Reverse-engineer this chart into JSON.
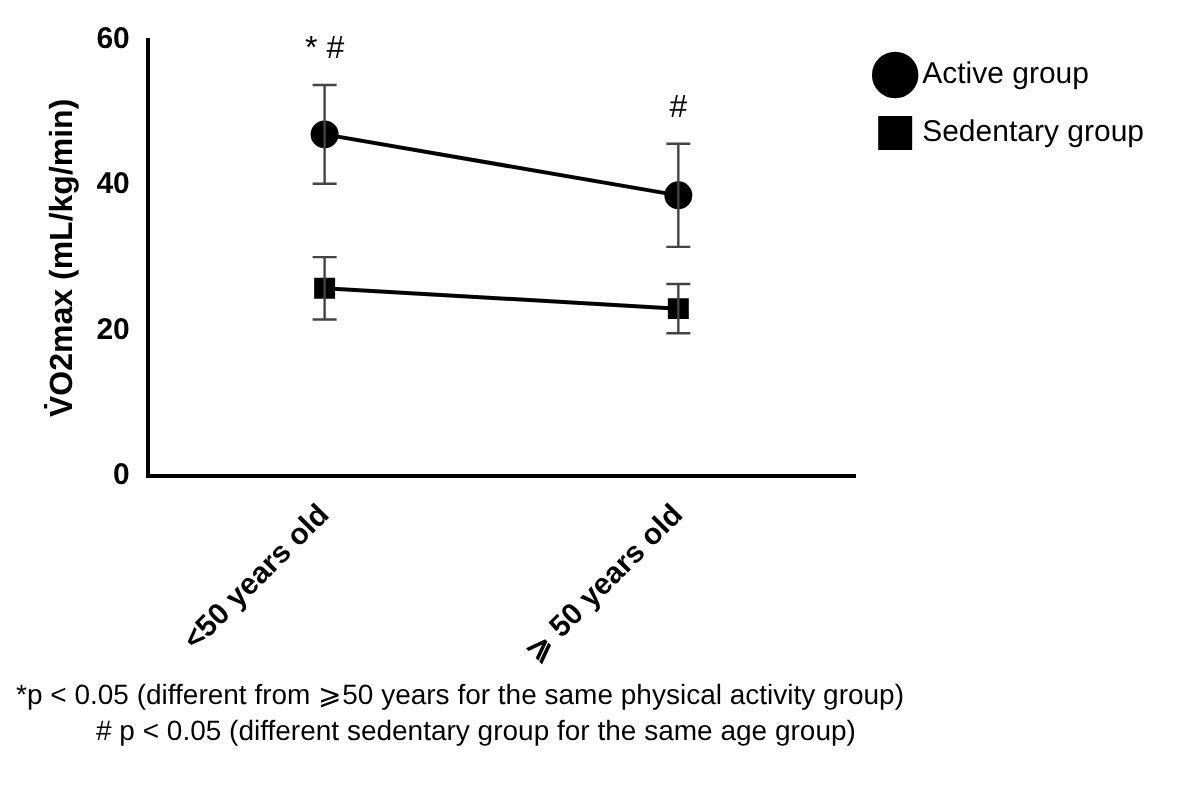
{
  "chart_data": {
    "type": "line",
    "ylabel": "V̇O2max (mL/kg/min)",
    "categories": [
      "<50 years old",
      "⩾ 50 years old"
    ],
    "series": [
      {
        "name": "Active group",
        "color": "#000000",
        "marker": "circle",
        "values": [
          47,
          38.6
        ],
        "errors": [
          6.8,
          7.1
        ]
      },
      {
        "name": "Sedentary group",
        "color": "#000000",
        "marker": "square",
        "values": [
          25.8,
          23
        ],
        "errors": [
          4.3,
          3.4
        ]
      }
    ],
    "ylim": [
      0,
      60
    ],
    "yticks": [
      0,
      20,
      40,
      60
    ],
    "grid": false,
    "legend": "top right",
    "line_style": "solid",
    "annotations": [
      "* #",
      "#",
      "*p < 0.05 (different from ⩾50 years for the same physical activity group)",
      "# p < 0.05 (different sedentary group for the same age group)"
    ]
  }
}
